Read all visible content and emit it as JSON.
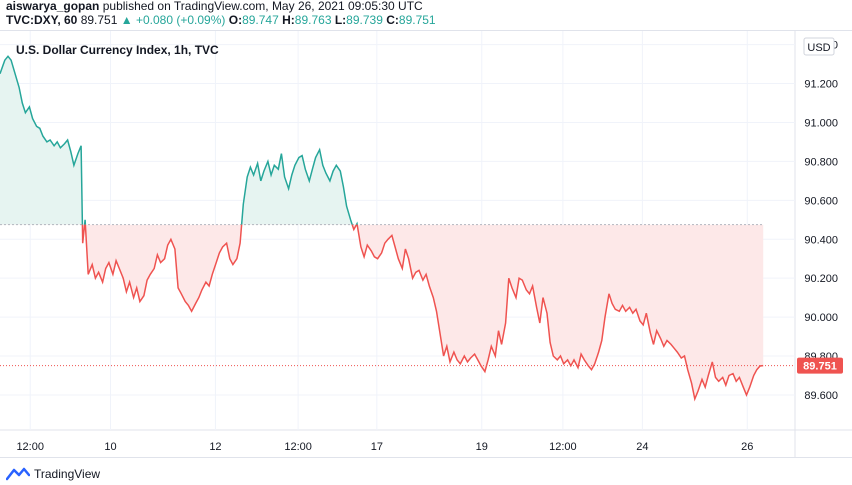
{
  "header": {
    "author": "aiswarya_gopan",
    "published_text": "published on TradingView.com, May 26, 2021 09:05:30 UTC",
    "symbol": "TVC:DXY, 60",
    "last": "89.751",
    "change_arrow": "▲",
    "change": "+0.080 (+0.09%)",
    "o_label": "O:",
    "o_value": "89.747",
    "h_label": "H:",
    "h_value": "89.763",
    "l_label": "L:",
    "l_value": "89.739",
    "c_label": "C:",
    "c_value": "89.751"
  },
  "footer": {
    "brand": "TradingView"
  },
  "colors": {
    "up_line": "#26a69a",
    "down_line": "#ef5350",
    "up_fill": "#e6f4f1",
    "down_fill": "#fde8e8",
    "price_tag": "#ef5350",
    "grid": "#f0f3fa",
    "axis_text": "#131722"
  },
  "chart_data": {
    "type": "area",
    "title": "U.S. Dollar Currency Index, 1h, TVC",
    "currency": "USD",
    "baseline": 90.475,
    "last_price_label": "89.751",
    "last_price": 89.751,
    "ylim": [
      89.42,
      91.47
    ],
    "xlim": [
      0,
      100
    ],
    "y_ticks": [
      {
        "value": 91.4,
        "label": "91.400"
      },
      {
        "value": 91.2,
        "label": "91.200"
      },
      {
        "value": 91.0,
        "label": "91.000"
      },
      {
        "value": 90.8,
        "label": "90.800"
      },
      {
        "value": 90.6,
        "label": "90.600"
      },
      {
        "value": 90.4,
        "label": "90.400"
      },
      {
        "value": 90.2,
        "label": "90.200"
      },
      {
        "value": 90.0,
        "label": "90.000"
      },
      {
        "value": 89.8,
        "label": "89.800"
      },
      {
        "value": 89.6,
        "label": "89.600"
      }
    ],
    "x_ticks": [
      {
        "x": 3.8,
        "label": "12:00"
      },
      {
        "x": 13.9,
        "label": "10"
      },
      {
        "x": 27.1,
        "label": "12"
      },
      {
        "x": 37.5,
        "label": "12:00"
      },
      {
        "x": 47.4,
        "label": "17"
      },
      {
        "x": 60.6,
        "label": "19"
      },
      {
        "x": 70.8,
        "label": "12:00"
      },
      {
        "x": 80.8,
        "label": "24"
      },
      {
        "x": 94.0,
        "label": "26"
      }
    ],
    "series": [
      {
        "points": [
          [
            0.0,
            91.25
          ],
          [
            0.6,
            91.32
          ],
          [
            1.0,
            91.34
          ],
          [
            1.4,
            91.32
          ],
          [
            1.9,
            91.25
          ],
          [
            2.4,
            91.18
          ],
          [
            2.8,
            91.1
          ],
          [
            3.2,
            91.05
          ],
          [
            3.7,
            91.08
          ],
          [
            4.1,
            91.02
          ],
          [
            4.6,
            90.98
          ],
          [
            5.0,
            90.97
          ],
          [
            5.4,
            90.93
          ],
          [
            5.9,
            90.9
          ],
          [
            6.3,
            90.91
          ],
          [
            6.8,
            90.88
          ],
          [
            7.2,
            90.9
          ],
          [
            7.6,
            90.87
          ],
          [
            8.1,
            90.89
          ],
          [
            8.5,
            90.91
          ],
          [
            8.9,
            90.85
          ],
          [
            9.3,
            90.78
          ],
          [
            9.8,
            90.84
          ],
          [
            10.2,
            90.88
          ],
          [
            10.4,
            90.38
          ],
          [
            10.7,
            90.5
          ],
          [
            11.1,
            90.22
          ],
          [
            11.6,
            90.27
          ],
          [
            12.0,
            90.2
          ],
          [
            12.4,
            90.23
          ],
          [
            12.9,
            90.18
          ],
          [
            13.3,
            90.25
          ],
          [
            13.7,
            90.28
          ],
          [
            14.2,
            90.22
          ],
          [
            14.6,
            90.29
          ],
          [
            15.0,
            90.25
          ],
          [
            15.5,
            90.2
          ],
          [
            15.9,
            90.13
          ],
          [
            16.3,
            90.18
          ],
          [
            16.8,
            90.1
          ],
          [
            17.2,
            90.15
          ],
          [
            17.6,
            90.08
          ],
          [
            18.1,
            90.11
          ],
          [
            18.5,
            90.19
          ],
          [
            18.9,
            90.22
          ],
          [
            19.4,
            90.25
          ],
          [
            19.8,
            90.32
          ],
          [
            20.2,
            90.28
          ],
          [
            20.7,
            90.3
          ],
          [
            21.1,
            90.37
          ],
          [
            21.5,
            90.4
          ],
          [
            22.0,
            90.35
          ],
          [
            22.4,
            90.15
          ],
          [
            22.8,
            90.12
          ],
          [
            23.3,
            90.08
          ],
          [
            23.7,
            90.06
          ],
          [
            24.1,
            90.03
          ],
          [
            24.6,
            90.07
          ],
          [
            25.0,
            90.1
          ],
          [
            25.4,
            90.14
          ],
          [
            25.9,
            90.18
          ],
          [
            26.3,
            90.16
          ],
          [
            26.7,
            90.22
          ],
          [
            27.2,
            90.28
          ],
          [
            27.6,
            90.33
          ],
          [
            28.0,
            90.36
          ],
          [
            28.5,
            90.38
          ],
          [
            28.9,
            90.3
          ],
          [
            29.3,
            90.27
          ],
          [
            29.8,
            90.3
          ],
          [
            30.2,
            90.38
          ],
          [
            30.6,
            90.58
          ],
          [
            31.1,
            90.72
          ],
          [
            31.5,
            90.77
          ],
          [
            31.9,
            90.73
          ],
          [
            32.4,
            90.79
          ],
          [
            32.8,
            90.7
          ],
          [
            33.2,
            90.75
          ],
          [
            33.7,
            90.8
          ],
          [
            34.1,
            90.73
          ],
          [
            34.5,
            90.78
          ],
          [
            35.0,
            90.76
          ],
          [
            35.4,
            90.84
          ],
          [
            35.8,
            90.72
          ],
          [
            36.3,
            90.66
          ],
          [
            36.7,
            90.73
          ],
          [
            37.1,
            90.78
          ],
          [
            37.6,
            90.82
          ],
          [
            38.0,
            90.83
          ],
          [
            38.4,
            90.76
          ],
          [
            38.9,
            90.7
          ],
          [
            39.3,
            90.76
          ],
          [
            39.7,
            90.82
          ],
          [
            40.2,
            90.86
          ],
          [
            40.6,
            90.78
          ],
          [
            41.0,
            90.74
          ],
          [
            41.5,
            90.7
          ],
          [
            41.9,
            90.75
          ],
          [
            42.3,
            90.78
          ],
          [
            42.8,
            90.75
          ],
          [
            43.2,
            90.67
          ],
          [
            43.6,
            90.57
          ],
          [
            44.1,
            90.5
          ],
          [
            44.5,
            90.45
          ],
          [
            44.9,
            90.48
          ],
          [
            45.4,
            90.36
          ],
          [
            45.8,
            90.31
          ],
          [
            46.2,
            90.37
          ],
          [
            46.7,
            90.34
          ],
          [
            47.1,
            90.31
          ],
          [
            47.5,
            90.3
          ],
          [
            48.0,
            90.33
          ],
          [
            48.4,
            90.38
          ],
          [
            48.8,
            90.4
          ],
          [
            49.3,
            90.42
          ],
          [
            49.7,
            90.36
          ],
          [
            50.1,
            90.3
          ],
          [
            50.6,
            90.25
          ],
          [
            51.0,
            90.35
          ],
          [
            51.4,
            90.3
          ],
          [
            51.9,
            90.2
          ],
          [
            52.3,
            90.23
          ],
          [
            52.7,
            90.24
          ],
          [
            53.2,
            90.19
          ],
          [
            53.6,
            90.22
          ],
          [
            54.0,
            90.16
          ],
          [
            54.5,
            90.1
          ],
          [
            54.9,
            90.03
          ],
          [
            55.3,
            89.93
          ],
          [
            55.8,
            89.8
          ],
          [
            56.2,
            89.85
          ],
          [
            56.6,
            89.77
          ],
          [
            57.1,
            89.82
          ],
          [
            57.5,
            89.78
          ],
          [
            57.9,
            89.76
          ],
          [
            58.4,
            89.8
          ],
          [
            58.8,
            89.77
          ],
          [
            59.2,
            89.79
          ],
          [
            59.7,
            89.81
          ],
          [
            60.1,
            89.78
          ],
          [
            60.5,
            89.75
          ],
          [
            61.0,
            89.72
          ],
          [
            61.4,
            89.78
          ],
          [
            61.8,
            89.85
          ],
          [
            62.3,
            89.8
          ],
          [
            62.7,
            89.93
          ],
          [
            63.1,
            89.86
          ],
          [
            63.6,
            89.97
          ],
          [
            64.0,
            90.2
          ],
          [
            64.4,
            90.15
          ],
          [
            64.9,
            90.1
          ],
          [
            65.3,
            90.2
          ],
          [
            65.7,
            90.19
          ],
          [
            66.2,
            90.14
          ],
          [
            66.6,
            90.12
          ],
          [
            67.0,
            90.16
          ],
          [
            67.5,
            90.05
          ],
          [
            67.9,
            89.97
          ],
          [
            68.3,
            90.1
          ],
          [
            68.8,
            90.02
          ],
          [
            69.2,
            89.87
          ],
          [
            69.6,
            89.8
          ],
          [
            70.1,
            89.78
          ],
          [
            70.5,
            89.8
          ],
          [
            70.9,
            89.76
          ],
          [
            71.4,
            89.78
          ],
          [
            71.8,
            89.75
          ],
          [
            72.2,
            89.78
          ],
          [
            72.7,
            89.74
          ],
          [
            73.1,
            89.81
          ],
          [
            73.5,
            89.78
          ],
          [
            74.0,
            89.75
          ],
          [
            74.4,
            89.73
          ],
          [
            74.8,
            89.76
          ],
          [
            75.3,
            89.82
          ],
          [
            75.7,
            89.88
          ],
          [
            76.1,
            90.0
          ],
          [
            76.6,
            90.12
          ],
          [
            77.0,
            90.07
          ],
          [
            77.4,
            90.04
          ],
          [
            77.9,
            90.03
          ],
          [
            78.3,
            90.06
          ],
          [
            78.7,
            90.03
          ],
          [
            79.2,
            90.05
          ],
          [
            79.6,
            90.02
          ],
          [
            80.0,
            90.04
          ],
          [
            80.5,
            89.98
          ],
          [
            80.9,
            89.96
          ],
          [
            81.3,
            90.02
          ],
          [
            81.8,
            89.92
          ],
          [
            82.2,
            89.86
          ],
          [
            82.6,
            89.93
          ],
          [
            83.1,
            89.89
          ],
          [
            83.5,
            89.85
          ],
          [
            83.9,
            89.88
          ],
          [
            84.4,
            89.86
          ],
          [
            84.8,
            89.84
          ],
          [
            85.2,
            89.82
          ],
          [
            85.7,
            89.79
          ],
          [
            86.1,
            89.8
          ],
          [
            86.5,
            89.73
          ],
          [
            87.0,
            89.66
          ],
          [
            87.4,
            89.58
          ],
          [
            87.8,
            89.62
          ],
          [
            88.3,
            89.68
          ],
          [
            88.7,
            89.64
          ],
          [
            89.1,
            89.7
          ],
          [
            89.6,
            89.77
          ],
          [
            90.0,
            89.69
          ],
          [
            90.4,
            89.67
          ],
          [
            90.9,
            89.69
          ],
          [
            91.3,
            89.65
          ],
          [
            91.7,
            89.7
          ],
          [
            92.2,
            89.71
          ],
          [
            92.6,
            89.67
          ],
          [
            93.0,
            89.69
          ],
          [
            93.5,
            89.64
          ],
          [
            93.9,
            89.6
          ],
          [
            94.3,
            89.64
          ],
          [
            94.8,
            89.7
          ],
          [
            95.2,
            89.73
          ],
          [
            95.6,
            89.749
          ],
          [
            96.0,
            89.751
          ]
        ]
      }
    ]
  }
}
